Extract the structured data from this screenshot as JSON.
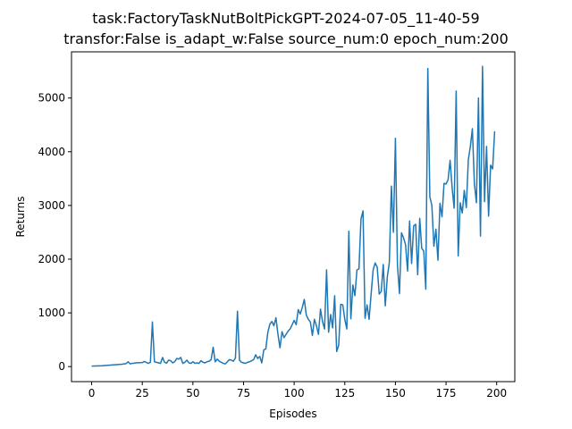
{
  "chart_data": {
    "type": "line",
    "title": "task:FactoryTaskNutBoltPickGPT-2024-07-05_11-40-59",
    "subtitle": "transfor:False  is_adapt_w:False   source_num:0   epoch_num:200",
    "xlabel": "Episodes",
    "ylabel": "Returns",
    "xlim": [
      -9.95,
      208.95
    ],
    "ylim": [
      -280,
      5860
    ],
    "xticks": [
      0,
      25,
      50,
      75,
      100,
      125,
      150,
      175,
      200
    ],
    "yticks": [
      0,
      1000,
      2000,
      3000,
      4000,
      5000
    ],
    "grid": false,
    "line_color": "#1f77b4",
    "series": [
      {
        "x": [
          0,
          5,
          10,
          15,
          17,
          18,
          19,
          20,
          22,
          25,
          26,
          28,
          29,
          30,
          31,
          33,
          34,
          35,
          36,
          37,
          38,
          39,
          40,
          41,
          42,
          43,
          44,
          45,
          46,
          47,
          48,
          49,
          50,
          51,
          52,
          53,
          54,
          55,
          56,
          57,
          58,
          59,
          60,
          61,
          62,
          63,
          64,
          65,
          66,
          67,
          68,
          69,
          70,
          71,
          72,
          73,
          74,
          75,
          76,
          77,
          78,
          79,
          80,
          81,
          82,
          83,
          84,
          85,
          86,
          87,
          88,
          89,
          90,
          91,
          92,
          93,
          94,
          95,
          96,
          97,
          98,
          99,
          100,
          101,
          102,
          103,
          104,
          105,
          106,
          107,
          108,
          109,
          110,
          111,
          112,
          113,
          114,
          115,
          116,
          117,
          118,
          119,
          120,
          121,
          122,
          123,
          124,
          125,
          126,
          127,
          128,
          129,
          130,
          131,
          132,
          133,
          134,
          135,
          136,
          137,
          138,
          139,
          140,
          141,
          142,
          143,
          144,
          145,
          146,
          147,
          148,
          149,
          150,
          151,
          152,
          153,
          154,
          155,
          156,
          157,
          158,
          159,
          160,
          161,
          162,
          163,
          164,
          165,
          166,
          167,
          168,
          169,
          170,
          171,
          172,
          173,
          174,
          175,
          176,
          177,
          178,
          179,
          180,
          181,
          182,
          183,
          184,
          185,
          186,
          187,
          188,
          189,
          190,
          191,
          192,
          193,
          194,
          195,
          196,
          197,
          198,
          199
        ],
        "y": [
          10,
          15,
          30,
          45,
          55,
          90,
          50,
          60,
          70,
          75,
          95,
          60,
          80,
          830,
          90,
          70,
          60,
          170,
          80,
          65,
          120,
          110,
          70,
          90,
          150,
          140,
          170,
          60,
          80,
          120,
          70,
          60,
          90,
          60,
          70,
          60,
          110,
          80,
          70,
          90,
          100,
          130,
          360,
          90,
          140,
          100,
          80,
          60,
          50,
          90,
          130,
          120,
          100,
          160,
          1030,
          120,
          80,
          70,
          60,
          80,
          90,
          110,
          130,
          220,
          150,
          190,
          70,
          310,
          330,
          640,
          790,
          840,
          760,
          910,
          600,
          350,
          650,
          540,
          600,
          660,
          700,
          780,
          860,
          780,
          1060,
          980,
          1100,
          1250,
          960,
          880,
          830,
          580,
          880,
          760,
          600,
          1070,
          840,
          700,
          1800,
          640,
          970,
          720,
          1320,
          280,
          400,
          1160,
          1150,
          880,
          700,
          2520,
          890,
          1520,
          1320,
          1800,
          1820,
          2750,
          2900,
          900,
          1150,
          880,
          1350,
          1800,
          1930,
          1850,
          1350,
          1400,
          1900,
          1130,
          1670,
          1940,
          3360,
          2500,
          4250,
          1900,
          1360,
          2490,
          2400,
          2270,
          1780,
          2710,
          1920,
          2620,
          2650,
          1710,
          2760,
          2200,
          2150,
          1440,
          5550,
          3160,
          3000,
          2240,
          2560,
          1980,
          3040,
          2790,
          3410,
          3400,
          3480,
          3840,
          3330,
          2950,
          5130,
          2060,
          3050,
          2860,
          3280,
          2960,
          3850,
          4100,
          4430,
          3400,
          3050,
          5000,
          2430,
          5590,
          3070,
          4100,
          2800,
          3750,
          3680,
          4380
        ]
      }
    ]
  }
}
